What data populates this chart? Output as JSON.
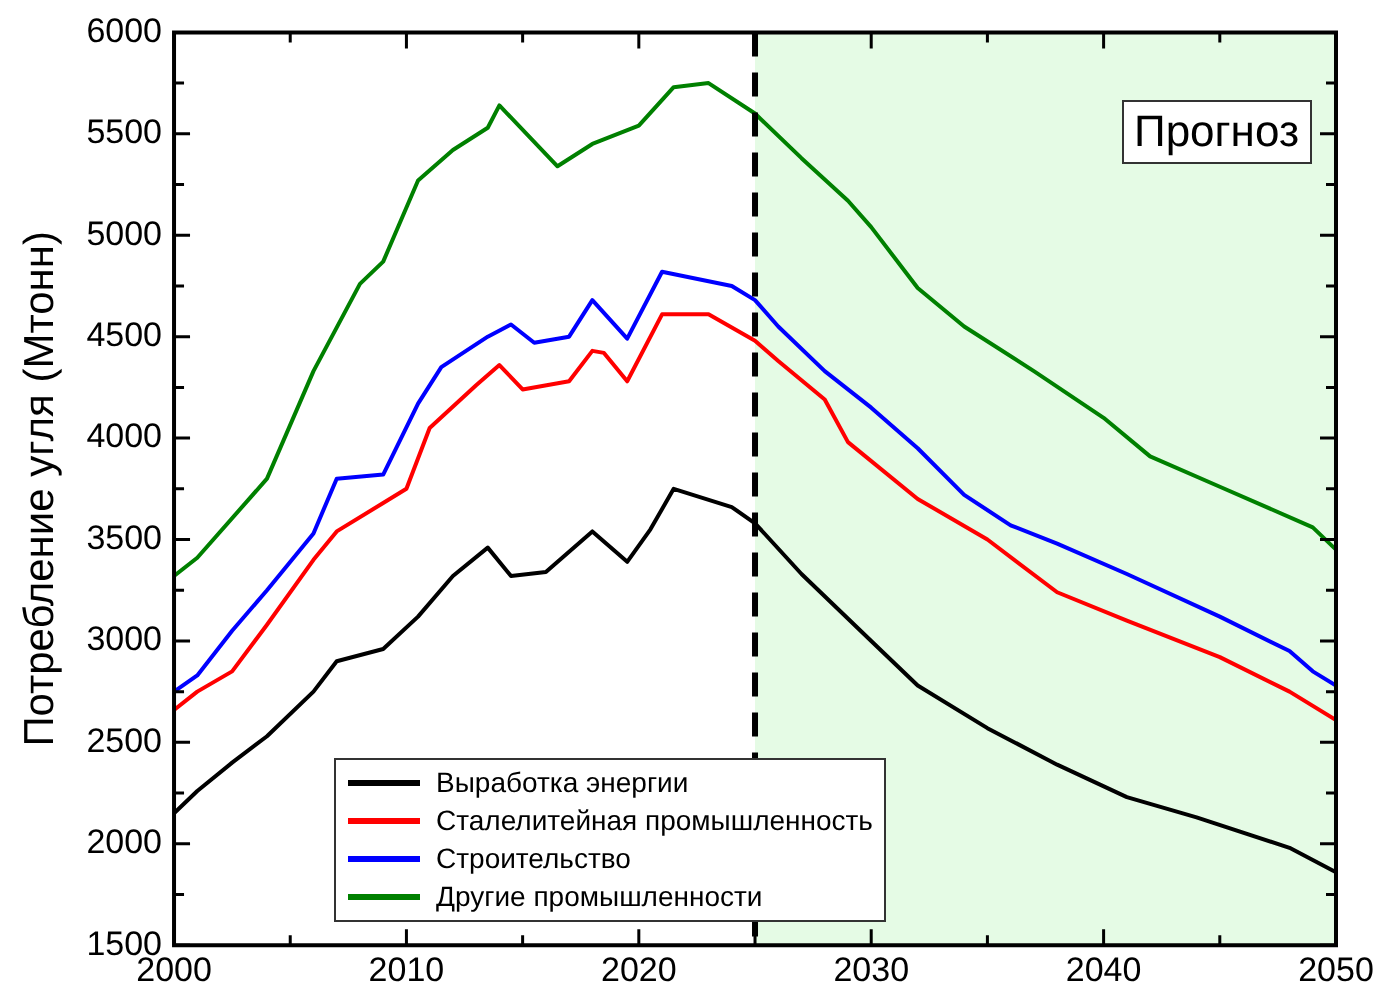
{
  "chart_data": {
    "type": "line",
    "ylabel": "Потребление угля (Мтонн)",
    "xlim": [
      2000,
      2050
    ],
    "ylim": [
      1500,
      6000
    ],
    "xticks": [
      2000,
      {
        "value": 2005,
        "label": null
      },
      2010,
      {
        "value": 2015,
        "label": null
      },
      2020,
      {
        "value": 2025,
        "label": null
      },
      2030,
      {
        "value": 2035,
        "label": null
      },
      2040,
      {
        "value": 2045,
        "label": null
      },
      2050
    ],
    "yticks": [
      1500,
      {
        "value": 1750,
        "label": null
      },
      2000,
      {
        "value": 2250,
        "label": null
      },
      2500,
      {
        "value": 2750,
        "label": null
      },
      3000,
      {
        "value": 3250,
        "label": null
      },
      3500,
      {
        "value": 3750,
        "label": null
      },
      4000,
      {
        "value": 4250,
        "label": null
      },
      4500,
      {
        "value": 4750,
        "label": null
      },
      5000,
      {
        "value": 5250,
        "label": null
      },
      5500,
      {
        "value": 5750,
        "label": null
      },
      6000
    ],
    "grid": false,
    "legend": "bottom",
    "line_style": "solid",
    "marker": "none",
    "bands": [
      {
        "axis": "x",
        "from": 2025,
        "to": 2050,
        "label": "Прогноз",
        "color": "#e5fbe5"
      }
    ],
    "ref_lines": [
      {
        "axis": "x",
        "value": 2025,
        "label": null,
        "color": "#000000",
        "line_style": "dashed"
      }
    ],
    "series": [
      {
        "name": "Выработка энергии",
        "color": "#000000",
        "x": [
          2000,
          2001,
          2002.5,
          2004,
          2006,
          2007,
          2009,
          2010.5,
          2012,
          2013.5,
          2014.5,
          2016,
          2018,
          2019.5,
          2020.5,
          2021.5,
          2024,
          2025,
          2027,
          2030,
          2032,
          2035,
          2038,
          2041,
          2044,
          2048,
          2050
        ],
        "values": [
          2150,
          2260,
          2400,
          2530,
          2750,
          2900,
          2960,
          3120,
          3320,
          3460,
          3320,
          3340,
          3540,
          3390,
          3550,
          3750,
          3660,
          3580,
          3330,
          3000,
          2780,
          2570,
          2390,
          2230,
          2130,
          1980,
          1860
        ]
      },
      {
        "name": "Сталелитейная промышленность",
        "color": "#ff0000",
        "x": [
          2000,
          2001,
          2002.5,
          2004,
          2006,
          2007,
          2009,
          2010,
          2011,
          2013,
          2014,
          2015,
          2017,
          2018,
          2018.5,
          2019.5,
          2021,
          2023,
          2025,
          2026,
          2028,
          2029,
          2032,
          2035,
          2038,
          2041,
          2045,
          2048,
          2050
        ],
        "values": [
          2660,
          2750,
          2850,
          3080,
          3400,
          3540,
          3680,
          3750,
          4050,
          4260,
          4360,
          4240,
          4280,
          4430,
          4420,
          4280,
          4610,
          4610,
          4480,
          4380,
          4190,
          3980,
          3700,
          3500,
          3240,
          3100,
          2920,
          2750,
          2610
        ]
      },
      {
        "name": "Строительство",
        "color": "#0000ff",
        "x": [
          2000,
          2001,
          2002.5,
          2004,
          2006,
          2007,
          2009,
          2010.5,
          2011.5,
          2013.5,
          2014.5,
          2015.5,
          2017,
          2018,
          2019.5,
          2021,
          2024,
          2025,
          2026,
          2028,
          2030,
          2032,
          2034,
          2036,
          2038,
          2041,
          2045,
          2048,
          2049,
          2050
        ],
        "values": [
          2750,
          2830,
          3050,
          3250,
          3530,
          3800,
          3820,
          4170,
          4350,
          4500,
          4560,
          4470,
          4500,
          4680,
          4490,
          4820,
          4750,
          4680,
          4550,
          4330,
          4150,
          3950,
          3720,
          3570,
          3480,
          3330,
          3120,
          2950,
          2850,
          2780
        ]
      },
      {
        "name": "Другие промышленности",
        "color": "#008000",
        "x": [
          2000,
          2001,
          2004,
          2006,
          2008,
          2009,
          2010.5,
          2012,
          2013.5,
          2014,
          2016.5,
          2018,
          2020,
          2021.5,
          2023,
          2025,
          2027,
          2029,
          2030,
          2032,
          2034,
          2037,
          2040,
          2042,
          2045,
          2049,
          2050
        ],
        "values": [
          3320,
          3410,
          3800,
          4330,
          4760,
          4870,
          5270,
          5420,
          5530,
          5640,
          5340,
          5450,
          5540,
          5730,
          5750,
          5600,
          5380,
          5170,
          5040,
          4740,
          4550,
          4330,
          4100,
          3910,
          3760,
          3560,
          3450
        ]
      }
    ]
  }
}
